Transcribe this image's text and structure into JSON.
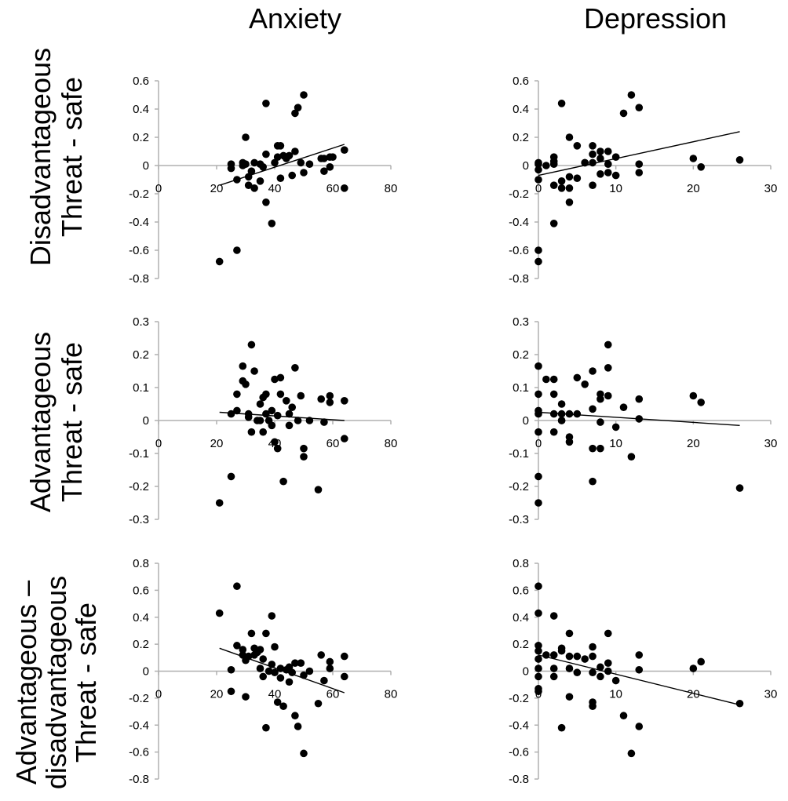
{
  "column_titles": [
    "Anxiety",
    "Depression"
  ],
  "row_labels": [
    [
      "Disadvantageous",
      "Threat - safe"
    ],
    [
      "Advantageous",
      "Threat - safe"
    ],
    [
      "Advantageous –",
      "disadvantageous",
      "Threat - safe"
    ]
  ],
  "colors": {
    "axis": "#b0b0b0",
    "marker": "#000000",
    "trend": "#000000"
  },
  "chart_data": [
    {
      "type": "scatter",
      "row": 0,
      "col": 0,
      "xlim": [
        0,
        80
      ],
      "ylim": [
        -0.8,
        0.6
      ],
      "xticks": [
        "0",
        "20",
        "40",
        "60",
        "80"
      ],
      "yticks": [
        "0.6",
        "0.4",
        "0.2",
        "0",
        "-0.2",
        "-0.4",
        "-0.6",
        "-0.8"
      ],
      "points": [
        [
          21,
          -0.68
        ],
        [
          25,
          -0.02
        ],
        [
          25,
          0.01
        ],
        [
          27,
          -0.1
        ],
        [
          27,
          -0.6
        ],
        [
          29,
          0.0
        ],
        [
          29,
          0.02
        ],
        [
          30,
          0.2
        ],
        [
          30,
          0.01
        ],
        [
          31,
          -0.14
        ],
        [
          31,
          -0.08
        ],
        [
          32,
          -0.04
        ],
        [
          33,
          0.02
        ],
        [
          33,
          -0.16
        ],
        [
          35,
          0.01
        ],
        [
          35,
          -0.11
        ],
        [
          36,
          -0.01
        ],
        [
          37,
          0.08
        ],
        [
          37,
          0.44
        ],
        [
          37,
          -0.26
        ],
        [
          39,
          -0.41
        ],
        [
          40,
          0.02
        ],
        [
          41,
          0.14
        ],
        [
          41,
          0.06
        ],
        [
          42,
          0.14
        ],
        [
          42,
          -0.09
        ],
        [
          43,
          0.07
        ],
        [
          44,
          0.05
        ],
        [
          45,
          0.07
        ],
        [
          46,
          -0.07
        ],
        [
          47,
          0.1
        ],
        [
          47,
          0.37
        ],
        [
          48,
          0.41
        ],
        [
          49,
          0.02
        ],
        [
          50,
          0.5
        ],
        [
          50,
          -0.05
        ],
        [
          52,
          0.01
        ],
        [
          56,
          0.05
        ],
        [
          57,
          -0.04
        ],
        [
          57,
          0.05
        ],
        [
          59,
          0.06
        ],
        [
          59,
          -0.01
        ],
        [
          60,
          0.06
        ],
        [
          64,
          0.11
        ],
        [
          64,
          -0.16
        ]
      ],
      "trend": [
        [
          21,
          -0.14
        ],
        [
          64,
          0.15
        ]
      ]
    },
    {
      "type": "scatter",
      "row": 0,
      "col": 1,
      "xlim": [
        0,
        30
      ],
      "ylim": [
        -0.8,
        0.6
      ],
      "xticks": [
        "0",
        "10",
        "20",
        "30"
      ],
      "yticks": [
        "0.6",
        "0.4",
        "0.2",
        "0",
        "-0.2",
        "-0.4",
        "-0.6",
        "-0.8"
      ],
      "points": [
        [
          0,
          0.02
        ],
        [
          0,
          -0.03
        ],
        [
          0,
          -0.1
        ],
        [
          0,
          -0.6
        ],
        [
          0,
          -0.68
        ],
        [
          0,
          0.01
        ],
        [
          1,
          0.0
        ],
        [
          2,
          0.06
        ],
        [
          2,
          0.03
        ],
        [
          2,
          0.01
        ],
        [
          2,
          -0.14
        ],
        [
          2,
          -0.41
        ],
        [
          3,
          0.44
        ],
        [
          3,
          -0.16
        ],
        [
          3,
          -0.11
        ],
        [
          4,
          0.2
        ],
        [
          4,
          -0.08
        ],
        [
          4,
          -0.16
        ],
        [
          4,
          -0.26
        ],
        [
          5,
          0.14
        ],
        [
          5,
          -0.09
        ],
        [
          6,
          0.02
        ],
        [
          6,
          0.02
        ],
        [
          7,
          0.14
        ],
        [
          7,
          0.08
        ],
        [
          7,
          0.02
        ],
        [
          7,
          -0.14
        ],
        [
          8,
          0.1
        ],
        [
          8,
          0.05
        ],
        [
          8,
          -0.06
        ],
        [
          9,
          0.1
        ],
        [
          9,
          0.01
        ],
        [
          9,
          -0.05
        ],
        [
          10,
          0.06
        ],
        [
          10,
          -0.07
        ],
        [
          11,
          0.37
        ],
        [
          12,
          0.5
        ],
        [
          13,
          0.41
        ],
        [
          13,
          0.01
        ],
        [
          13,
          -0.05
        ],
        [
          20,
          0.05
        ],
        [
          21,
          -0.01
        ],
        [
          26,
          0.04
        ]
      ],
      "trend": [
        [
          0,
          -0.07
        ],
        [
          26,
          0.24
        ]
      ]
    },
    {
      "type": "scatter",
      "row": 1,
      "col": 0,
      "xlim": [
        0,
        80
      ],
      "ylim": [
        -0.3,
        0.3
      ],
      "xticks": [
        "0",
        "20",
        "40",
        "60",
        "80"
      ],
      "yticks": [
        "0.3",
        "0.2",
        "0.1",
        "0",
        "-0.1",
        "-0.2",
        "-0.3"
      ],
      "points": [
        [
          21,
          -0.25
        ],
        [
          25,
          -0.17
        ],
        [
          25,
          0.02
        ],
        [
          27,
          0.08
        ],
        [
          27,
          0.03
        ],
        [
          29,
          0.165
        ],
        [
          29,
          0.12
        ],
        [
          30,
          0.11
        ],
        [
          31,
          0.01
        ],
        [
          31,
          0.02
        ],
        [
          32,
          0.23
        ],
        [
          32,
          -0.035
        ],
        [
          33,
          0.15
        ],
        [
          34,
          0.0
        ],
        [
          35,
          0.05
        ],
        [
          35,
          -0.0
        ],
        [
          36,
          0.07
        ],
        [
          36,
          -0.035
        ],
        [
          37,
          0.08
        ],
        [
          37,
          0.02
        ],
        [
          38,
          0.0
        ],
        [
          39,
          0.03
        ],
        [
          39,
          -0.015
        ],
        [
          40,
          0.125
        ],
        [
          40,
          -0.065
        ],
        [
          41,
          -0.085
        ],
        [
          41,
          0.015
        ],
        [
          42,
          0.08
        ],
        [
          42,
          0.13
        ],
        [
          43,
          -0.185
        ],
        [
          44,
          0.06
        ],
        [
          45,
          -0.015
        ],
        [
          45,
          0.02
        ],
        [
          46,
          0.04
        ],
        [
          47,
          0.16
        ],
        [
          48,
          0.0
        ],
        [
          49,
          0.075
        ],
        [
          50,
          -0.085
        ],
        [
          50,
          -0.11
        ],
        [
          52,
          0.0
        ],
        [
          55,
          -0.21
        ],
        [
          56,
          0.065
        ],
        [
          57,
          -0.005
        ],
        [
          59,
          0.075
        ],
        [
          59,
          0.055
        ],
        [
          64,
          0.06
        ],
        [
          64,
          -0.055
        ]
      ],
      "trend": [
        [
          21,
          0.025
        ],
        [
          64,
          0.0
        ]
      ]
    },
    {
      "type": "scatter",
      "row": 1,
      "col": 1,
      "xlim": [
        0,
        30
      ],
      "ylim": [
        -0.3,
        0.3
      ],
      "xticks": [
        "0",
        "10",
        "20",
        "30"
      ],
      "yticks": [
        "0.3",
        "0.2",
        "0.1",
        "0",
        "-0.1",
        "-0.2",
        "-0.3"
      ],
      "points": [
        [
          0,
          0.165
        ],
        [
          0,
          0.08
        ],
        [
          0,
          0.03
        ],
        [
          0,
          0.02
        ],
        [
          0,
          -0.035
        ],
        [
          0,
          -0.17
        ],
        [
          0,
          -0.25
        ],
        [
          1,
          0.125
        ],
        [
          2,
          0.125
        ],
        [
          2,
          0.08
        ],
        [
          2,
          0.02
        ],
        [
          2,
          -0.035
        ],
        [
          3,
          0.05
        ],
        [
          3,
          0.02
        ],
        [
          3,
          0.0
        ],
        [
          3,
          -0.0
        ],
        [
          4,
          0.02
        ],
        [
          4,
          -0.05
        ],
        [
          4,
          -0.065
        ],
        [
          5,
          0.13
        ],
        [
          5,
          0.02
        ],
        [
          6,
          0.11
        ],
        [
          7,
          0.15
        ],
        [
          7,
          0.035
        ],
        [
          7,
          -0.085
        ],
        [
          7,
          -0.185
        ],
        [
          8,
          0.08
        ],
        [
          8,
          0.065
        ],
        [
          8,
          -0.005
        ],
        [
          8,
          -0.085
        ],
        [
          9,
          0.23
        ],
        [
          9,
          0.16
        ],
        [
          9,
          0.075
        ],
        [
          10,
          -0.02
        ],
        [
          11,
          0.04
        ],
        [
          12,
          -0.11
        ],
        [
          13,
          0.065
        ],
        [
          13,
          0.005
        ],
        [
          20,
          0.075
        ],
        [
          21,
          0.055
        ],
        [
          26,
          -0.205
        ]
      ],
      "trend": [
        [
          0,
          0.025
        ],
        [
          26,
          -0.015
        ]
      ]
    },
    {
      "type": "scatter",
      "row": 2,
      "col": 0,
      "xlim": [
        0,
        80
      ],
      "ylim": [
        -0.8,
        0.8
      ],
      "xticks": [
        "0",
        "20",
        "40",
        "60",
        "80"
      ],
      "yticks": [
        "0.8",
        "0.6",
        "0.4",
        "0.2",
        "0",
        "-0.2",
        "-0.4",
        "-0.6",
        "-0.8"
      ],
      "points": [
        [
          21,
          0.43
        ],
        [
          25,
          0.01
        ],
        [
          25,
          -0.15
        ],
        [
          27,
          0.63
        ],
        [
          27,
          0.19
        ],
        [
          29,
          0.16
        ],
        [
          29,
          0.12
        ],
        [
          30,
          0.08
        ],
        [
          30,
          -0.19
        ],
        [
          31,
          0.11
        ],
        [
          32,
          0.28
        ],
        [
          33,
          0.12
        ],
        [
          33,
          0.17
        ],
        [
          34,
          0.14
        ],
        [
          35,
          0.16
        ],
        [
          35,
          0.02
        ],
        [
          36,
          0.09
        ],
        [
          36,
          -0.04
        ],
        [
          37,
          0.28
        ],
        [
          37,
          -0.42
        ],
        [
          38,
          0.0
        ],
        [
          39,
          0.41
        ],
        [
          39,
          0.05
        ],
        [
          40,
          0.18
        ],
        [
          40,
          -0.01
        ],
        [
          41,
          -0.23
        ],
        [
          42,
          0.02
        ],
        [
          42,
          -0.05
        ],
        [
          43,
          -0.26
        ],
        [
          44,
          0.01
        ],
        [
          45,
          -0.08
        ],
        [
          45,
          0.03
        ],
        [
          46,
          -0.01
        ],
        [
          47,
          -0.33
        ],
        [
          47,
          0.06
        ],
        [
          48,
          -0.41
        ],
        [
          49,
          0.06
        ],
        [
          50,
          -0.61
        ],
        [
          50,
          -0.03
        ],
        [
          52,
          0.0
        ],
        [
          55,
          -0.24
        ],
        [
          56,
          0.12
        ],
        [
          57,
          -0.07
        ],
        [
          59,
          0.07
        ],
        [
          59,
          0.02
        ],
        [
          64,
          0.11
        ],
        [
          64,
          -0.04
        ]
      ],
      "trend": [
        [
          21,
          0.17
        ],
        [
          64,
          -0.16
        ]
      ]
    },
    {
      "type": "scatter",
      "row": 2,
      "col": 1,
      "xlim": [
        0,
        30
      ],
      "ylim": [
        -0.8,
        0.8
      ],
      "xticks": [
        "0",
        "10",
        "20",
        "30"
      ],
      "yticks": [
        "0.8",
        "0.6",
        "0.4",
        "0.2",
        "0",
        "-0.2",
        "-0.4",
        "-0.6",
        "-0.8"
      ],
      "points": [
        [
          0,
          0.63
        ],
        [
          0,
          0.43
        ],
        [
          0,
          0.19
        ],
        [
          0,
          0.15
        ],
        [
          0,
          0.09
        ],
        [
          0,
          0.02
        ],
        [
          0,
          -0.04
        ],
        [
          0,
          -0.13
        ],
        [
          0,
          -0.15
        ],
        [
          1,
          0.12
        ],
        [
          2,
          0.41
        ],
        [
          2,
          0.12
        ],
        [
          2,
          0.02
        ],
        [
          2,
          -0.04
        ],
        [
          3,
          0.17
        ],
        [
          3,
          0.15
        ],
        [
          3,
          -0.42
        ],
        [
          4,
          0.28
        ],
        [
          4,
          0.11
        ],
        [
          4,
          0.02
        ],
        [
          4,
          -0.19
        ],
        [
          5,
          0.11
        ],
        [
          5,
          -0.01
        ],
        [
          6,
          0.09
        ],
        [
          7,
          0.18
        ],
        [
          7,
          0.11
        ],
        [
          7,
          -0.01
        ],
        [
          7,
          -0.23
        ],
        [
          7,
          -0.26
        ],
        [
          8,
          0.03
        ],
        [
          8,
          -0.04
        ],
        [
          9,
          0.28
        ],
        [
          9,
          0.06
        ],
        [
          9,
          0.0
        ],
        [
          10,
          -0.07
        ],
        [
          11,
          -0.33
        ],
        [
          12,
          -0.61
        ],
        [
          13,
          0.12
        ],
        [
          13,
          0.01
        ],
        [
          13,
          -0.41
        ],
        [
          20,
          0.02
        ],
        [
          21,
          0.07
        ],
        [
          26,
          -0.24
        ]
      ],
      "trend": [
        [
          0,
          0.12
        ],
        [
          26,
          -0.25
        ]
      ]
    }
  ]
}
